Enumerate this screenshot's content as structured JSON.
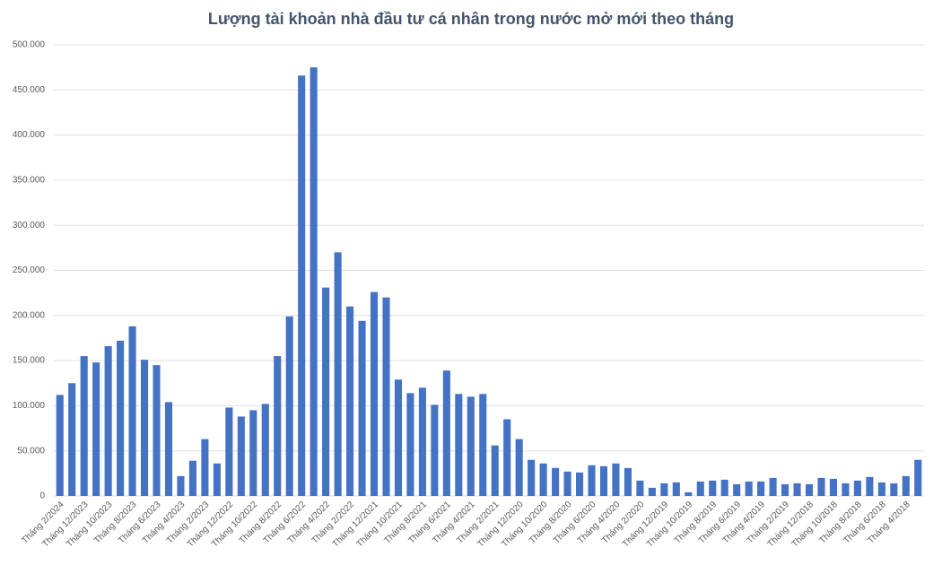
{
  "chart_data": {
    "type": "bar",
    "title": "Lượng tài khoản nhà đầu tư cá nhân trong nước mở mới theo tháng",
    "categories": [
      "Tháng 2/2024",
      null,
      "Tháng 12/2023",
      null,
      "Tháng 10/2023",
      null,
      "Tháng 8/2023",
      null,
      "Tháng 6/2023",
      null,
      "Tháng 4/2023",
      null,
      "Tháng 2/2023",
      null,
      "Tháng 12/2022",
      null,
      "Tháng 10/2022",
      null,
      "Tháng 8/2022",
      null,
      "Tháng 6/2022",
      null,
      "Tháng 4/2022",
      null,
      "Tháng 2/2022",
      null,
      "Tháng 12/2021",
      null,
      "Tháng 10/2021",
      null,
      "Tháng 8/2021",
      null,
      "Tháng 6/2021",
      null,
      "Tháng 4/2021",
      null,
      "Tháng 2/2021",
      null,
      "Tháng 12/2020",
      null,
      "Tháng 10/2020",
      null,
      "Tháng 8/2020",
      null,
      "Tháng 6/2020",
      null,
      "Tháng 4/2020",
      null,
      "Tháng 2/2020",
      null,
      "Tháng 12/2019",
      null,
      "Tháng 10/2019",
      null,
      "Tháng 8/2019",
      null,
      "Tháng 6/2019",
      null,
      "Tháng 4/2019",
      null,
      "Tháng 2/2019",
      null,
      "Tháng 12/2018",
      null,
      "Tháng 10/2018",
      null,
      "Tháng 8/2018",
      null,
      "Tháng 6/2018",
      null,
      "Tháng 4/2018",
      null
    ],
    "values": [
      112000,
      125000,
      155000,
      148000,
      166000,
      172000,
      188000,
      151000,
      145000,
      104000,
      22000,
      39000,
      63000,
      36000,
      98000,
      88000,
      95000,
      102000,
      155000,
      199000,
      466000,
      475000,
      231000,
      270000,
      210000,
      194000,
      226000,
      220000,
      129000,
      114000,
      120000,
      101000,
      139000,
      113000,
      110000,
      113000,
      56000,
      85000,
      63000,
      40000,
      36000,
      31000,
      27000,
      26000,
      34000,
      33000,
      36000,
      31000,
      17000,
      9000,
      14000,
      15000,
      4000,
      16000,
      17000,
      18000,
      13000,
      16000,
      16000,
      20000,
      13000,
      14000,
      13000,
      20000,
      19000,
      14000,
      17000,
      21000,
      15000,
      14000,
      22000,
      40000
    ],
    "color": "#4472c4",
    "ylim": [
      0,
      500000
    ],
    "yticks": [
      0,
      {
        "value": 50000,
        "label": "50.000"
      },
      {
        "value": 100000,
        "label": "100.000"
      },
      {
        "value": 150000,
        "label": "150.000"
      },
      {
        "value": 200000,
        "label": "200.000"
      },
      {
        "value": 250000,
        "label": "250.000"
      },
      {
        "value": 300000,
        "label": "300.000"
      },
      {
        "value": 350000,
        "label": "350.000"
      },
      {
        "value": 400000,
        "label": "400.000"
      },
      {
        "value": 450000,
        "label": "450.000"
      },
      {
        "value": 500000,
        "label": "500.000"
      }
    ],
    "grid": true
  }
}
